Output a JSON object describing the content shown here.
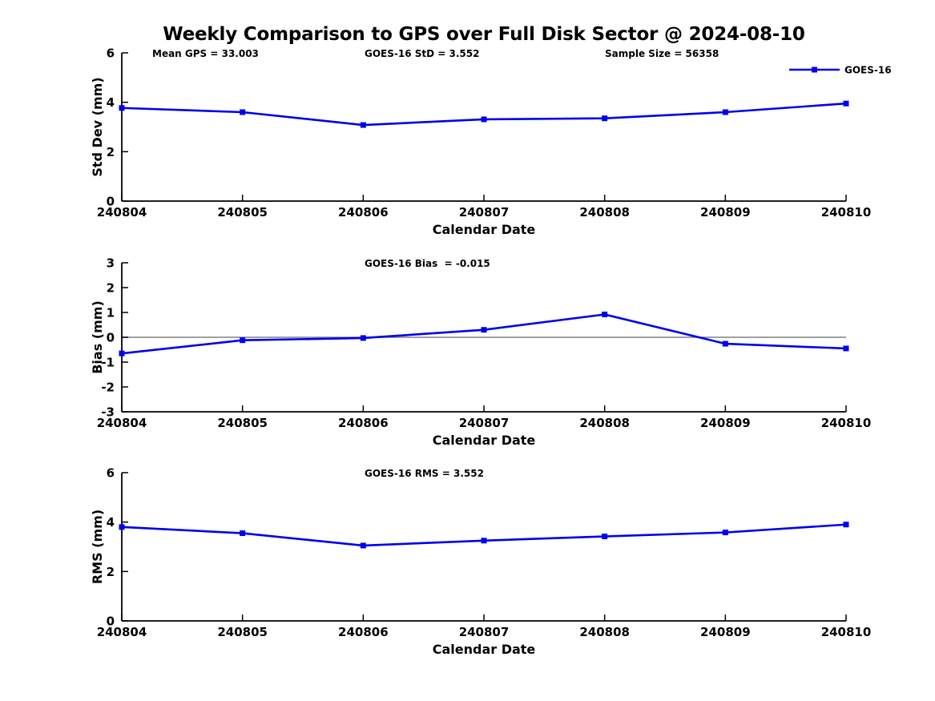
{
  "title": "Weekly Comparison to GPS over Full Disk Sector @ 2024-08-10",
  "colors": {
    "series_line": "#0000EE",
    "axis": "#000000",
    "zero_line": "#808080",
    "text": "#000000",
    "background": "#FFFFFF"
  },
  "legend": {
    "label": "GOES-16",
    "marker": "square",
    "position": "top-right"
  },
  "categories": [
    "240804",
    "240805",
    "240806",
    "240807",
    "240808",
    "240809",
    "240810"
  ],
  "chart_data": [
    {
      "type": "line",
      "title": "",
      "annotations": [
        "Mean GPS = 33.003",
        "GOES-16 StD = 3.552",
        "Sample Size = 56358"
      ],
      "xlabel": "Calendar Date",
      "ylabel": "Std Dev (mm)",
      "ylim": [
        0,
        6
      ],
      "yticks": [
        0,
        2,
        4,
        6
      ],
      "categories": [
        "240804",
        "240805",
        "240806",
        "240807",
        "240808",
        "240809",
        "240810"
      ],
      "series": [
        {
          "name": "GOES-16",
          "values": [
            3.77,
            3.6,
            3.08,
            3.31,
            3.35,
            3.6,
            3.95
          ]
        }
      ],
      "grid": false,
      "legend_visible": true,
      "zero_line": false
    },
    {
      "type": "line",
      "title": "",
      "annotations": [
        "GOES-16 Bias  = -0.015"
      ],
      "xlabel": "Calendar Date",
      "ylabel": "Bias (mm)",
      "ylim": [
        -3,
        3
      ],
      "yticks": [
        -3,
        -2,
        -1,
        0,
        1,
        2,
        3
      ],
      "categories": [
        "240804",
        "240805",
        "240806",
        "240807",
        "240808",
        "240809",
        "240810"
      ],
      "series": [
        {
          "name": "GOES-16",
          "values": [
            -0.65,
            -0.12,
            -0.03,
            0.3,
            0.92,
            -0.26,
            -0.45
          ]
        }
      ],
      "grid": false,
      "legend_visible": false,
      "zero_line": true
    },
    {
      "type": "line",
      "title": "",
      "annotations": [
        "GOES-16 RMS = 3.552"
      ],
      "xlabel": "Calendar Date",
      "ylabel": "RMS (mm)",
      "ylim": [
        0,
        6
      ],
      "yticks": [
        0,
        2,
        4,
        6
      ],
      "categories": [
        "240804",
        "240805",
        "240806",
        "240807",
        "240808",
        "240809",
        "240810"
      ],
      "series": [
        {
          "name": "GOES-16",
          "values": [
            3.8,
            3.55,
            3.05,
            3.25,
            3.42,
            3.58,
            3.9
          ]
        }
      ],
      "grid": false,
      "legend_visible": false,
      "zero_line": false
    }
  ]
}
